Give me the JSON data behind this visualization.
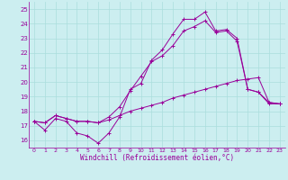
{
  "xlabel": "Windchill (Refroidissement éolien,°C)",
  "background_color": "#cceef0",
  "line_color": "#990099",
  "grid_color": "#aadddd",
  "xlim": [
    -0.5,
    23.5
  ],
  "ylim": [
    15.5,
    25.5
  ],
  "yticks": [
    16,
    17,
    18,
    19,
    20,
    21,
    22,
    23,
    24,
    25
  ],
  "xticks": [
    0,
    1,
    2,
    3,
    4,
    5,
    6,
    7,
    8,
    9,
    10,
    11,
    12,
    13,
    14,
    15,
    16,
    17,
    18,
    19,
    20,
    21,
    22,
    23
  ],
  "series1_x": [
    0,
    1,
    2,
    3,
    4,
    5,
    6,
    7,
    8,
    9,
    10,
    11,
    12,
    13,
    14,
    15,
    16,
    17,
    18,
    19,
    20,
    21,
    22,
    23
  ],
  "series1_y": [
    17.3,
    16.7,
    17.5,
    17.3,
    16.5,
    16.3,
    15.8,
    16.5,
    17.6,
    19.5,
    19.9,
    21.5,
    22.2,
    23.3,
    24.3,
    24.3,
    24.8,
    23.5,
    23.6,
    23.0,
    19.5,
    19.3,
    18.5,
    18.5
  ],
  "series2_x": [
    0,
    1,
    2,
    3,
    4,
    5,
    6,
    7,
    8,
    9,
    10,
    11,
    12,
    13,
    14,
    15,
    16,
    17,
    18,
    19,
    20,
    21,
    22,
    23
  ],
  "series2_y": [
    17.3,
    17.2,
    17.7,
    17.5,
    17.3,
    17.3,
    17.2,
    17.4,
    17.7,
    18.0,
    18.2,
    18.4,
    18.6,
    18.9,
    19.1,
    19.3,
    19.5,
    19.7,
    19.9,
    20.1,
    20.2,
    20.3,
    18.6,
    18.5
  ],
  "series3_x": [
    0,
    1,
    2,
    3,
    4,
    5,
    6,
    7,
    8,
    9,
    10,
    11,
    12,
    13,
    14,
    15,
    16,
    17,
    18,
    19,
    20,
    21,
    22,
    23
  ],
  "series3_y": [
    17.3,
    17.2,
    17.7,
    17.5,
    17.3,
    17.3,
    17.2,
    17.6,
    18.3,
    19.4,
    20.4,
    21.4,
    21.8,
    22.5,
    23.5,
    23.8,
    24.2,
    23.4,
    23.5,
    22.8,
    19.5,
    19.3,
    18.6,
    18.5
  ]
}
